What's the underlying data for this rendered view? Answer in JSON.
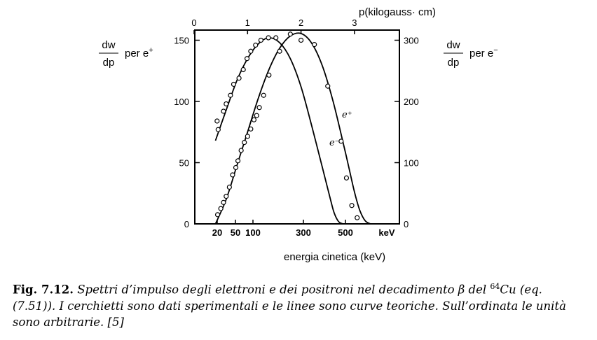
{
  "chart_data": {
    "type": "scatter",
    "left_axis": {
      "label_num": "dw",
      "label_den": "dp",
      "label_suffix": "per e",
      "label_sup": "+",
      "ticks": [
        "0",
        "50",
        "100",
        "150"
      ],
      "range": [
        0,
        160
      ]
    },
    "right_axis": {
      "label_num": "dw",
      "label_den": "dp",
      "label_suffix": "per e",
      "label_sup": "−",
      "ticks": [
        "0",
        "100",
        "200",
        "300"
      ],
      "range": [
        0,
        320
      ]
    },
    "top_axis": {
      "label": "p(kilogauss· cm)",
      "ticks": [
        "0",
        "1",
        "2",
        "3"
      ]
    },
    "bottom_axis": {
      "label": "energia cinetica (keV)",
      "ticks": [
        "20",
        "50",
        "100",
        "300",
        "500"
      ],
      "unit_tick": "keV"
    },
    "series": [
      {
        "name": "e⁺",
        "axis": "left",
        "points": [
          {
            "p": 0.43,
            "v": 84
          },
          {
            "p": 0.45,
            "v": 77
          },
          {
            "p": 0.55,
            "v": 92
          },
          {
            "p": 0.6,
            "v": 98
          },
          {
            "p": 0.68,
            "v": 105
          },
          {
            "p": 0.74,
            "v": 114
          },
          {
            "p": 0.84,
            "v": 119
          },
          {
            "p": 0.92,
            "v": 126
          },
          {
            "p": 0.99,
            "v": 135
          },
          {
            "p": 1.06,
            "v": 141
          },
          {
            "p": 1.15,
            "v": 146
          },
          {
            "p": 1.25,
            "v": 150
          },
          {
            "p": 1.39,
            "v": 152
          },
          {
            "p": 1.53,
            "v": 152
          }
        ],
        "curve": [
          {
            "p": 0.4,
            "v": 68
          },
          {
            "p": 0.6,
            "v": 93
          },
          {
            "p": 0.8,
            "v": 117
          },
          {
            "p": 1.0,
            "v": 135
          },
          {
            "p": 1.2,
            "v": 147
          },
          {
            "p": 1.4,
            "v": 152
          },
          {
            "p": 1.6,
            "v": 148
          },
          {
            "p": 1.8,
            "v": 135
          },
          {
            "p": 2.0,
            "v": 112
          },
          {
            "p": 2.2,
            "v": 80
          },
          {
            "p": 2.4,
            "v": 46
          },
          {
            "p": 2.55,
            "v": 20
          },
          {
            "p": 2.62,
            "v": 9
          },
          {
            "p": 2.7,
            "v": 2
          },
          {
            "p": 2.78,
            "v": 0
          }
        ]
      },
      {
        "name": "e⁻",
        "axis": "right",
        "points": [
          {
            "p": 0.44,
            "v": 15
          },
          {
            "p": 0.5,
            "v": 25
          },
          {
            "p": 0.55,
            "v": 35
          },
          {
            "p": 0.6,
            "v": 45
          },
          {
            "p": 0.66,
            "v": 60
          },
          {
            "p": 0.72,
            "v": 80
          },
          {
            "p": 0.78,
            "v": 92
          },
          {
            "p": 0.82,
            "v": 103
          },
          {
            "p": 0.88,
            "v": 120
          },
          {
            "p": 0.94,
            "v": 133
          },
          {
            "p": 1.0,
            "v": 143
          },
          {
            "p": 1.06,
            "v": 155
          },
          {
            "p": 1.12,
            "v": 170
          },
          {
            "p": 1.17,
            "v": 177
          },
          {
            "p": 1.22,
            "v": 190
          },
          {
            "p": 1.3,
            "v": 210
          },
          {
            "p": 1.4,
            "v": 243
          },
          {
            "p": 1.6,
            "v": 282
          },
          {
            "p": 1.8,
            "v": 310
          },
          {
            "p": 2.0,
            "v": 300
          },
          {
            "p": 2.25,
            "v": 293
          },
          {
            "p": 2.5,
            "v": 225
          },
          {
            "p": 2.75,
            "v": 135
          },
          {
            "p": 2.85,
            "v": 75
          },
          {
            "p": 2.95,
            "v": 30
          },
          {
            "p": 3.05,
            "v": 10
          }
        ],
        "curve": [
          {
            "p": 0.4,
            "v": 0
          },
          {
            "p": 0.6,
            "v": 40
          },
          {
            "p": 0.8,
            "v": 95
          },
          {
            "p": 1.0,
            "v": 150
          },
          {
            "p": 1.2,
            "v": 205
          },
          {
            "p": 1.4,
            "v": 252
          },
          {
            "p": 1.6,
            "v": 287
          },
          {
            "p": 1.8,
            "v": 307
          },
          {
            "p": 2.0,
            "v": 311
          },
          {
            "p": 2.2,
            "v": 295
          },
          {
            "p": 2.4,
            "v": 258
          },
          {
            "p": 2.6,
            "v": 200
          },
          {
            "p": 2.8,
            "v": 128
          },
          {
            "p": 2.9,
            "v": 90
          },
          {
            "p": 3.0,
            "v": 52
          },
          {
            "p": 3.1,
            "v": 22
          },
          {
            "p": 3.2,
            "v": 5
          },
          {
            "p": 3.3,
            "v": 0
          }
        ]
      }
    ],
    "annotations": [
      {
        "text": "e⁺",
        "near_series": "e⁺"
      },
      {
        "text": "e⁻",
        "near_series": "e⁻"
      }
    ],
    "grid": false,
    "legend": "none"
  },
  "caption": {
    "label": "Fig. 7.12.",
    "text_before_sup": "Spettri d’impulso degli elettroni e dei positroni nel decadimento β del",
    "sup": "64",
    "text_after_sup": "Cu (eq. (7.51)). I cerchietti sono dati sperimentali e le linee sono curve teoriche. Sull’ordinata le unità sono arbitrarie. [5]"
  }
}
